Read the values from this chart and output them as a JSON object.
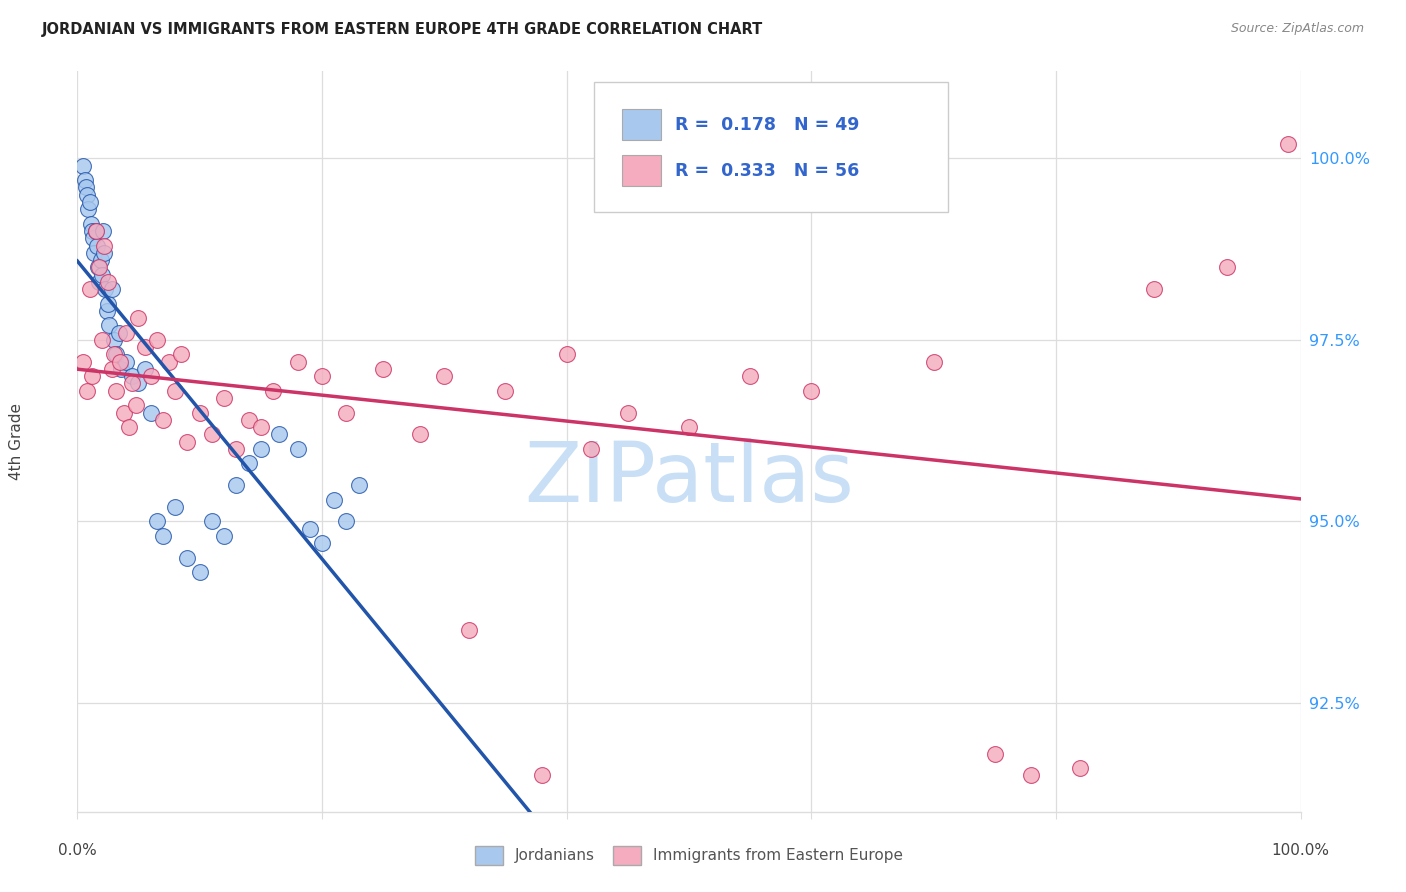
{
  "title": "JORDANIAN VS IMMIGRANTS FROM EASTERN EUROPE 4TH GRADE CORRELATION CHART",
  "source": "Source: ZipAtlas.com",
  "ylabel": "4th Grade",
  "ytick_values": [
    92.5,
    95.0,
    97.5,
    100.0
  ],
  "xmin": 0.0,
  "xmax": 100.0,
  "ymin": 91.0,
  "ymax": 101.2,
  "R_blue": 0.178,
  "N_blue": 49,
  "R_pink": 0.333,
  "N_pink": 56,
  "legend_label_blue": "Jordanians",
  "legend_label_pink": "Immigrants from Eastern Europe",
  "blue_color": "#A8C8EE",
  "pink_color": "#F4ACBE",
  "blue_line_color": "#2255AA",
  "pink_line_color": "#CC3366",
  "legend_r_color": "#3366CC",
  "watermark_color": "#C8DFF5",
  "grid_color": "#DDDDDD",
  "background_color": "#FFFFFF",
  "title_color": "#222222",
  "source_color": "#888888",
  "axis_label_color": "#444444",
  "ytick_color": "#3399FF",
  "blue_x": [
    0.5,
    0.6,
    0.7,
    0.8,
    0.9,
    1.0,
    1.1,
    1.2,
    1.3,
    1.4,
    1.5,
    1.6,
    1.7,
    1.8,
    1.9,
    2.0,
    2.1,
    2.2,
    2.3,
    2.4,
    2.5,
    2.6,
    2.8,
    3.0,
    3.2,
    3.4,
    3.6,
    4.0,
    4.5,
    5.0,
    5.5,
    6.0,
    6.5,
    7.0,
    8.0,
    9.0,
    10.0,
    11.0,
    12.0,
    13.0,
    14.0,
    15.0,
    16.5,
    18.0,
    19.0,
    20.0,
    21.0,
    22.0,
    23.0
  ],
  "blue_y": [
    99.9,
    99.7,
    99.6,
    99.5,
    99.3,
    99.4,
    99.1,
    99.0,
    98.9,
    98.7,
    99.0,
    98.8,
    98.5,
    98.3,
    98.6,
    98.4,
    99.0,
    98.7,
    98.2,
    97.9,
    98.0,
    97.7,
    98.2,
    97.5,
    97.3,
    97.6,
    97.1,
    97.2,
    97.0,
    96.9,
    97.1,
    96.5,
    95.0,
    94.8,
    95.2,
    94.5,
    94.3,
    95.0,
    94.8,
    95.5,
    95.8,
    96.0,
    96.2,
    96.0,
    94.9,
    94.7,
    95.3,
    95.0,
    95.5
  ],
  "pink_x": [
    0.5,
    0.8,
    1.0,
    1.2,
    1.5,
    1.8,
    2.0,
    2.2,
    2.5,
    2.8,
    3.0,
    3.2,
    3.5,
    3.8,
    4.0,
    4.2,
    4.5,
    4.8,
    5.0,
    5.5,
    6.0,
    6.5,
    7.0,
    7.5,
    8.0,
    8.5,
    9.0,
    10.0,
    11.0,
    12.0,
    13.0,
    14.0,
    15.0,
    16.0,
    18.0,
    20.0,
    22.0,
    25.0,
    28.0,
    30.0,
    32.0,
    35.0,
    38.0,
    40.0,
    42.0,
    45.0,
    50.0,
    55.0,
    60.0,
    70.0,
    75.0,
    78.0,
    82.0,
    88.0,
    94.0,
    99.0
  ],
  "pink_y": [
    97.2,
    96.8,
    98.2,
    97.0,
    99.0,
    98.5,
    97.5,
    98.8,
    98.3,
    97.1,
    97.3,
    96.8,
    97.2,
    96.5,
    97.6,
    96.3,
    96.9,
    96.6,
    97.8,
    97.4,
    97.0,
    97.5,
    96.4,
    97.2,
    96.8,
    97.3,
    96.1,
    96.5,
    96.2,
    96.7,
    96.0,
    96.4,
    96.3,
    96.8,
    97.2,
    97.0,
    96.5,
    97.1,
    96.2,
    97.0,
    93.5,
    96.8,
    91.5,
    97.3,
    96.0,
    96.5,
    96.3,
    97.0,
    96.8,
    97.2,
    91.8,
    91.5,
    91.6,
    98.2,
    98.5,
    100.2
  ]
}
